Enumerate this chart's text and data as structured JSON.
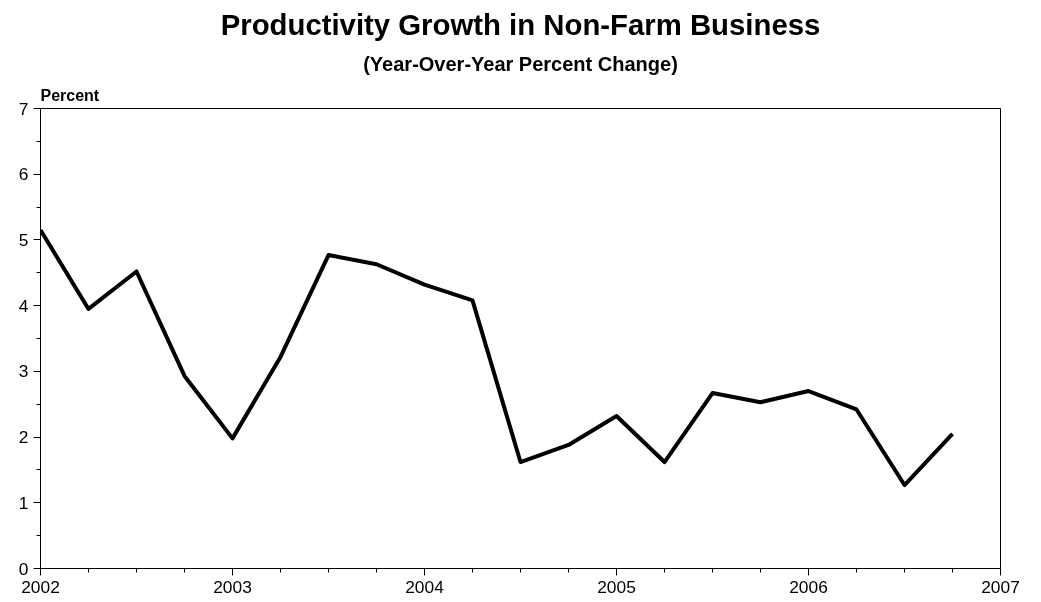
{
  "chart_data": {
    "type": "line",
    "title": "Productivity Growth in Non-Farm Business",
    "subtitle": "(Year-Over-Year Percent Change)",
    "ylabel": "Percent",
    "x": [
      2002,
      2002.25,
      2002.5,
      2002.75,
      2003,
      2003.25,
      2003.5,
      2003.75,
      2004,
      2004.25,
      2004.5,
      2004.75,
      2005,
      2005.25,
      2005.5,
      2005.75,
      2006,
      2006.25,
      2006.5,
      2006.75
    ],
    "series": [
      {
        "color": "#000000",
        "values": [
          5.15,
          3.95,
          4.52,
          2.93,
          1.98,
          3.22,
          4.77,
          4.63,
          4.32,
          4.08,
          1.62,
          1.88,
          2.32,
          1.62,
          2.67,
          2.53,
          2.7,
          2.42,
          1.27,
          2.05
        ]
      }
    ],
    "xlim": [
      2002,
      2007
    ],
    "xticks": [
      2002,
      {
        "value": 2002.25,
        "label": null
      },
      {
        "value": 2002.5,
        "label": null
      },
      {
        "value": 2002.75,
        "label": null
      },
      2003,
      {
        "value": 2003.25,
        "label": null
      },
      {
        "value": 2003.5,
        "label": null
      },
      {
        "value": 2003.75,
        "label": null
      },
      2004,
      {
        "value": 2004.25,
        "label": null
      },
      {
        "value": 2004.5,
        "label": null
      },
      {
        "value": 2004.75,
        "label": null
      },
      2005,
      {
        "value": 2005.25,
        "label": null
      },
      {
        "value": 2005.5,
        "label": null
      },
      {
        "value": 2005.75,
        "label": null
      },
      2006,
      {
        "value": 2006.25,
        "label": null
      },
      {
        "value": 2006.5,
        "label": null
      },
      {
        "value": 2006.75,
        "label": null
      },
      2007
    ],
    "ylim": [
      0,
      7
    ],
    "yticks": [
      0,
      {
        "value": 0.5,
        "label": null
      },
      1,
      {
        "value": 1.5,
        "label": null
      },
      2,
      {
        "value": 2.5,
        "label": null
      },
      3,
      {
        "value": 3.5,
        "label": null
      },
      4,
      {
        "value": 4.5,
        "label": null
      },
      5,
      {
        "value": 5.5,
        "label": null
      },
      6,
      {
        "value": 6.5,
        "label": null
      },
      7
    ],
    "grid": false,
    "marker": "none",
    "line_style": "solid"
  }
}
